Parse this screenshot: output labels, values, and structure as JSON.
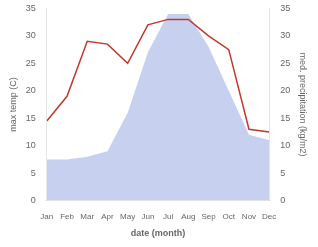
{
  "chart_data": {
    "type": "line",
    "categories": [
      "Jan",
      "Feb",
      "Mar",
      "Apr",
      "May",
      "Jun",
      "Jul",
      "Aug",
      "Sep",
      "Oct",
      "Nov",
      "Dec"
    ],
    "series": [
      {
        "type": "area",
        "axis": "y2",
        "color": "#c8d0f0",
        "values": [
          7.5,
          7.5,
          8.0,
          9.0,
          16.0,
          27.0,
          34.0,
          34.0,
          28.0,
          20.0,
          12.0,
          11.0
        ]
      },
      {
        "type": "line",
        "color": "#c0392b",
        "values": [
          14.5,
          19.0,
          29.0,
          28.5,
          25.0,
          32.0,
          33.0,
          33.0,
          30.0,
          27.5,
          13.0,
          12.5
        ]
      }
    ],
    "xlabel": "date (month)",
    "ylabel": "max temp (C)",
    "y2label": "med. precipitation (kg/m2)",
    "ylim": [
      0,
      35
    ],
    "yticks": [
      0,
      5,
      10,
      15,
      20,
      25,
      30,
      35
    ],
    "y2lim": [
      0,
      35
    ],
    "y2ticks": [
      0,
      5,
      10,
      15,
      20,
      25,
      30,
      35
    ],
    "grid": false
  }
}
